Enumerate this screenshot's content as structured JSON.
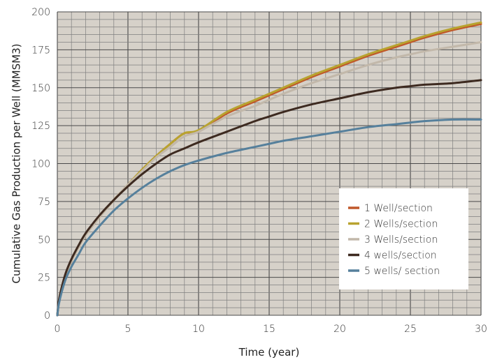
{
  "chart_data": {
    "type": "line",
    "title": "",
    "xlabel": "Time (year)",
    "ylabel": "Cumulative Gas Production per Well (MMSM3)",
    "xlim": [
      0,
      30
    ],
    "ylim": [
      0,
      200
    ],
    "xticks": [
      0,
      5,
      10,
      15,
      20,
      25,
      30
    ],
    "yticks": [
      0,
      25,
      50,
      75,
      100,
      125,
      150,
      175,
      200
    ],
    "x_minor_step": 1,
    "y_minor_step": 5,
    "grid": true,
    "plot_background": "#d6d1c9",
    "grid_color_minor": "#7f7f7f",
    "grid_color_major": "#4a4a4a",
    "legend_position": "bottom-right",
    "x": [
      0,
      0.1,
      0.3,
      0.6,
      1,
      1.5,
      2,
      3,
      4,
      5,
      6,
      7,
      8,
      9,
      10,
      12,
      14,
      15,
      16,
      18,
      20,
      22,
      24,
      25,
      26,
      28,
      30
    ],
    "series": [
      {
        "name": "1 Well/section",
        "color": "#c0582a",
        "values": [
          0,
          8,
          17,
          27,
          36,
          45,
          53,
          65,
          76,
          86,
          96,
          105,
          113,
          120,
          121,
          133,
          141,
          145,
          149,
          157,
          164,
          171,
          177,
          180,
          183,
          188,
          192
        ]
      },
      {
        "name": "2 Wells/section",
        "color": "#b8a32f",
        "values": [
          0,
          8,
          17,
          27,
          36,
          45,
          53,
          65,
          76,
          86,
          96,
          105,
          113,
          120,
          122,
          134,
          142,
          146,
          150,
          158,
          165,
          172,
          178,
          181,
          184,
          189,
          193
        ]
      },
      {
        "name": "3 Wells/section",
        "color": "#c2b8aa",
        "values": [
          0,
          8,
          17,
          27,
          36,
          45,
          53,
          65,
          76,
          86,
          95,
          104,
          111,
          118,
          121,
          131,
          138,
          142,
          146,
          153,
          159,
          165,
          170,
          172,
          174,
          177,
          180
        ]
      },
      {
        "name": "4 wells/section",
        "color": "#3d2a20",
        "values": [
          0,
          9,
          18,
          28,
          37,
          46,
          54,
          66,
          76,
          85,
          93,
          100,
          106,
          110,
          114,
          121,
          128,
          131,
          134,
          139,
          143,
          147,
          150,
          151,
          152,
          153,
          155
        ]
      },
      {
        "name": "5 wells/ section",
        "color": "#56809c",
        "values": [
          0,
          7,
          15,
          24,
          32,
          40,
          48,
          59,
          69,
          77,
          84,
          90,
          95,
          99,
          102,
          107,
          111,
          113,
          115,
          118,
          121,
          124,
          126,
          127,
          128,
          129,
          129
        ]
      }
    ]
  }
}
